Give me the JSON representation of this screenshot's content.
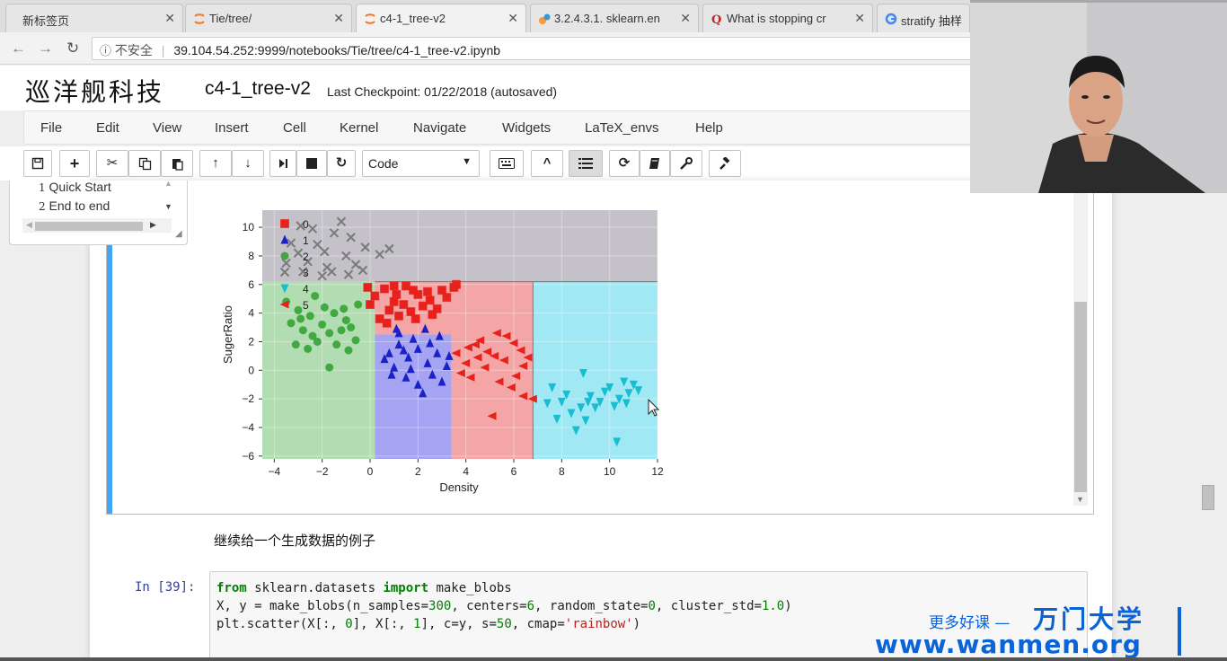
{
  "browser": {
    "tabs": [
      {
        "label": "新标签页",
        "icon": "blank-page-icon",
        "active": false
      },
      {
        "label": "Tie/tree/",
        "icon": "jupyter-icon",
        "active": false
      },
      {
        "label": "c4-1_tree-v2",
        "icon": "jupyter-icon",
        "active": true
      },
      {
        "label": "3.2.4.3.1. sklearn.en",
        "icon": "scikit-learn-icon",
        "active": false
      },
      {
        "label": "What is stopping cr",
        "icon": "quora-icon",
        "active": false
      },
      {
        "label": "stratify 抽样",
        "icon": "google-icon",
        "active": false
      }
    ],
    "address": {
      "security_label": "不安全",
      "url": "39.104.54.252:9999/notebooks/Tie/tree/c4-1_tree-v2.ipynb"
    }
  },
  "notebook": {
    "logo": "巡洋舰科技",
    "name": "c4-1_tree-v2",
    "checkpoint": "Last Checkpoint: 01/22/2018 (autosaved)",
    "menu": [
      "File",
      "Edit",
      "View",
      "Insert",
      "Cell",
      "Kernel",
      "Navigate",
      "Widgets",
      "LaTeX_envs",
      "Help"
    ],
    "toolbar": {
      "cell_type": "Code",
      "buttons": [
        "save-icon",
        "add-cell-icon",
        "cut-icon",
        "copy-icon",
        "paste-icon",
        "move-up-icon",
        "move-down-icon",
        "run-icon",
        "stop-icon",
        "restart-icon",
        "keyboard-icon",
        "collapse-icon",
        "toc-icon",
        "refresh-icon",
        "book-icon",
        "wrench-icon",
        "gavel-icon"
      ]
    },
    "toc": {
      "items": [
        {
          "num": "1",
          "label": "Quick Start"
        },
        {
          "num": "2",
          "label": "End to end"
        }
      ]
    },
    "markdown": "继续给一个生成数据的例子",
    "code_cell": {
      "prompt": "In  [39]:",
      "lines": [
        [
          {
            "t": "from",
            "c": "kw"
          },
          {
            "t": " sklearn.datasets ",
            "c": ""
          },
          {
            "t": "import",
            "c": "kw"
          },
          {
            "t": " make_blobs",
            "c": ""
          }
        ],
        [
          {
            "t": "X, y = make_blobs(n_samples=",
            "c": ""
          },
          {
            "t": "300",
            "c": "num"
          },
          {
            "t": ", centers=",
            "c": ""
          },
          {
            "t": "6",
            "c": "num"
          },
          {
            "t": ", random_state=",
            "c": ""
          },
          {
            "t": "0",
            "c": "num"
          },
          {
            "t": ", cluster_std=",
            "c": ""
          },
          {
            "t": "1.0",
            "c": "num"
          },
          {
            "t": ")",
            "c": ""
          }
        ],
        [
          {
            "t": "plt.scatter(X[:, ",
            "c": ""
          },
          {
            "t": "0",
            "c": "num"
          },
          {
            "t": "], X[:, ",
            "c": ""
          },
          {
            "t": "1",
            "c": "num"
          },
          {
            "t": "], c=y, s=",
            "c": ""
          },
          {
            "t": "50",
            "c": "num"
          },
          {
            "t": ", cmap=",
            "c": ""
          },
          {
            "t": "'rainbow'",
            "c": "str"
          },
          {
            "t": ")",
            "c": ""
          }
        ]
      ]
    }
  },
  "watermark": {
    "line1": "更多好课 —",
    "brand": "万门大学",
    "url": "www.wanmen.org"
  },
  "chart_data": {
    "type": "scatter",
    "title": "",
    "xlabel": "Density",
    "ylabel": "SugerRatio",
    "xlim": [
      -4.5,
      12
    ],
    "ylim": [
      -6.2,
      11.2
    ],
    "xticks": [
      "−4",
      "−2",
      "0",
      "2",
      "4",
      "6",
      "8",
      "10",
      "12"
    ],
    "yticks": [
      "10",
      "8",
      "6",
      "4",
      "2",
      "0",
      "−2",
      "−4",
      "−6"
    ],
    "legend": [
      "0",
      "1",
      "2",
      "3",
      "4",
      "5"
    ],
    "legend_position": "top-left",
    "regions": [
      {
        "class": "grey",
        "x": [
          -4.5,
          12
        ],
        "y": [
          6.2,
          11.2
        ],
        "color": "#c4c2c8"
      },
      {
        "class": "green",
        "x": [
          -4.5,
          0.2
        ],
        "y": [
          -6.2,
          6.2
        ],
        "color": "#b2dcb2"
      },
      {
        "class": "blue",
        "x": [
          0.2,
          3.4
        ],
        "y": [
          -6.2,
          2.5
        ],
        "color": "#a4a4f2"
      },
      {
        "class": "red",
        "x": [
          0.2,
          6.8
        ],
        "y": [
          2.5,
          6.2
        ],
        "color": "#f4a6a6"
      },
      {
        "class": "red",
        "x": [
          3.4,
          6.8
        ],
        "y": [
          -6.2,
          2.5
        ],
        "color": "#f4a6a6"
      },
      {
        "class": "cyan",
        "x": [
          6.8,
          12
        ],
        "y": [
          -6.2,
          6.2
        ],
        "color": "#a0e8f4"
      }
    ],
    "series": [
      {
        "name": "0",
        "marker": "square",
        "color": "#e8211c",
        "points": [
          [
            0.2,
            5.2
          ],
          [
            0.6,
            5.7
          ],
          [
            1.0,
            4.8
          ],
          [
            1.5,
            5.9
          ],
          [
            2.0,
            5.3
          ],
          [
            2.5,
            4.9
          ],
          [
            3.0,
            5.6
          ],
          [
            3.5,
            5.8
          ],
          [
            0.8,
            4.2
          ],
          [
            1.2,
            3.8
          ],
          [
            2.2,
            4.5
          ],
          [
            0.4,
            3.6
          ],
          [
            1.7,
            4.1
          ],
          [
            2.8,
            4.3
          ],
          [
            3.2,
            5.1
          ],
          [
            0.0,
            4.6
          ],
          [
            1.0,
            5.9
          ],
          [
            2.4,
            5.5
          ],
          [
            1.9,
            3.6
          ],
          [
            0.7,
            3.3
          ],
          [
            1.4,
            4.6
          ],
          [
            2.6,
            3.9
          ],
          [
            3.6,
            6.0
          ],
          [
            1.1,
            5.3
          ],
          [
            -0.1,
            5.8
          ],
          [
            1.8,
            5.6
          ]
        ]
      },
      {
        "name": "1",
        "marker": "triangle-up",
        "color": "#1b20c8",
        "points": [
          [
            0.8,
            1.2
          ],
          [
            1.2,
            1.8
          ],
          [
            1.6,
            0.9
          ],
          [
            2.0,
            1.5
          ],
          [
            2.4,
            0.5
          ],
          [
            2.8,
            1.2
          ],
          [
            3.2,
            0.3
          ],
          [
            1.0,
            0.2
          ],
          [
            1.5,
            -0.5
          ],
          [
            2.0,
            -1.0
          ],
          [
            2.6,
            -0.3
          ],
          [
            3.0,
            -0.8
          ],
          [
            1.2,
            2.6
          ],
          [
            1.8,
            2.2
          ],
          [
            2.3,
            2.9
          ],
          [
            0.9,
            -0.3
          ],
          [
            1.4,
            1.4
          ],
          [
            2.5,
            1.9
          ],
          [
            3.3,
            1.0
          ],
          [
            2.2,
            -1.6
          ],
          [
            1.7,
            0.1
          ],
          [
            2.9,
            2.4
          ],
          [
            1.1,
            2.9
          ],
          [
            0.6,
            0.8
          ]
        ]
      },
      {
        "name": "2",
        "marker": "circle",
        "color": "#2ca02c",
        "points": [
          [
            -3.5,
            4.8
          ],
          [
            -3.0,
            4.2
          ],
          [
            -2.5,
            3.8
          ],
          [
            -2.0,
            3.2
          ],
          [
            -1.5,
            4.0
          ],
          [
            -1.0,
            3.5
          ],
          [
            -0.5,
            4.6
          ],
          [
            -2.8,
            2.8
          ],
          [
            -2.2,
            2.0
          ],
          [
            -1.7,
            2.6
          ],
          [
            -1.2,
            2.8
          ],
          [
            -3.3,
            3.3
          ],
          [
            -2.6,
            1.5
          ],
          [
            -1.9,
            4.4
          ],
          [
            -0.8,
            3.0
          ],
          [
            -1.4,
            1.8
          ],
          [
            -2.3,
            5.2
          ],
          [
            -3.1,
            1.8
          ],
          [
            -0.6,
            2.1
          ],
          [
            -1.7,
            0.2
          ],
          [
            -2.9,
            3.6
          ],
          [
            -1.1,
            4.3
          ],
          [
            -2.4,
            2.4
          ],
          [
            -0.9,
            1.4
          ]
        ]
      },
      {
        "name": "3",
        "marker": "x",
        "color": "#7a7a7a",
        "points": [
          [
            -3.0,
            8.2
          ],
          [
            -2.6,
            7.6
          ],
          [
            -2.2,
            8.8
          ],
          [
            -1.8,
            7.2
          ],
          [
            -1.5,
            9.6
          ],
          [
            -1.0,
            8.0
          ],
          [
            -0.6,
            7.4
          ],
          [
            -0.2,
            8.6
          ],
          [
            -2.8,
            6.9
          ],
          [
            -2.0,
            6.6
          ],
          [
            -1.2,
            10.4
          ],
          [
            -3.3,
            8.9
          ],
          [
            -2.4,
            9.9
          ],
          [
            -0.8,
            9.3
          ],
          [
            0.4,
            8.1
          ],
          [
            -1.6,
            6.9
          ],
          [
            -2.9,
            10.1
          ],
          [
            -0.3,
            7.0
          ],
          [
            0.8,
            8.5
          ],
          [
            -1.9,
            8.3
          ],
          [
            -3.5,
            7.5
          ],
          [
            -0.9,
            6.7
          ]
        ]
      },
      {
        "name": "4",
        "marker": "triangle-down",
        "color": "#17becf",
        "points": [
          [
            7.6,
            -1.2
          ],
          [
            8.0,
            -2.2
          ],
          [
            8.4,
            -3.0
          ],
          [
            8.8,
            -2.6
          ],
          [
            9.2,
            -1.8
          ],
          [
            9.6,
            -2.2
          ],
          [
            10.0,
            -1.2
          ],
          [
            10.4,
            -2.0
          ],
          [
            10.8,
            -1.6
          ],
          [
            11.2,
            -1.4
          ],
          [
            7.8,
            -3.4
          ],
          [
            8.6,
            -4.2
          ],
          [
            9.0,
            -3.5
          ],
          [
            9.4,
            -2.6
          ],
          [
            9.8,
            -1.5
          ],
          [
            10.2,
            -2.5
          ],
          [
            10.6,
            -0.8
          ],
          [
            11.0,
            -1.0
          ],
          [
            8.2,
            -1.7
          ],
          [
            10.3,
            -5.0
          ],
          [
            9.1,
            -2.2
          ],
          [
            7.4,
            -2.3
          ],
          [
            8.9,
            -0.2
          ],
          [
            10.7,
            -2.3
          ]
        ]
      },
      {
        "name": "5",
        "marker": "triangle-left",
        "color": "#e8211c",
        "points": [
          [
            3.6,
            1.2
          ],
          [
            4.0,
            0.5
          ],
          [
            4.4,
            1.8
          ],
          [
            4.8,
            0.2
          ],
          [
            5.2,
            1.0
          ],
          [
            5.6,
            0.7
          ],
          [
            6.0,
            1.9
          ],
          [
            6.4,
            0.3
          ],
          [
            4.2,
            -0.5
          ],
          [
            4.6,
            2.1
          ],
          [
            5.4,
            -0.8
          ],
          [
            5.9,
            -1.2
          ],
          [
            6.3,
            1.4
          ],
          [
            4.9,
            1.3
          ],
          [
            5.7,
            2.4
          ],
          [
            6.6,
            0.9
          ],
          [
            3.8,
            -0.2
          ],
          [
            6.1,
            -0.4
          ],
          [
            5.1,
            -3.2
          ],
          [
            6.4,
            -1.8
          ],
          [
            4.5,
            0.9
          ],
          [
            5.3,
            2.6
          ],
          [
            6.8,
            -2.0
          ],
          [
            4.1,
            1.6
          ]
        ]
      }
    ]
  }
}
